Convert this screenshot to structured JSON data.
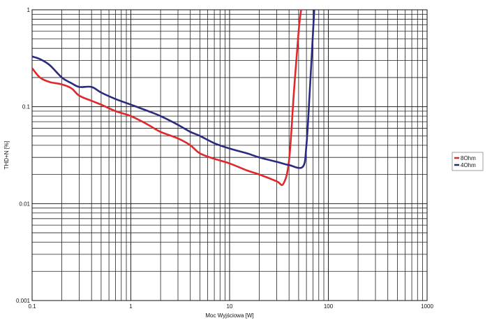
{
  "chart_data": {
    "type": "line",
    "xlabel": "Moc Wyjściowa [W]",
    "ylabel": "THD+N [%]",
    "x_scale": "log",
    "y_scale": "log",
    "xlim": [
      0.1,
      1000
    ],
    "ylim": [
      0.001,
      1
    ],
    "x_ticks": [
      "0.1",
      "1",
      "10",
      "100",
      "1000"
    ],
    "y_ticks": [
      "0.001",
      "0.01",
      "0.1",
      "1"
    ],
    "grid": true,
    "legend_position": "right",
    "series": [
      {
        "name": "8Ohm",
        "color": "#e0282a",
        "x": [
          0.1,
          0.12,
          0.15,
          0.2,
          0.25,
          0.3,
          0.4,
          0.5,
          0.7,
          1,
          1.5,
          2,
          3,
          4,
          5,
          7,
          10,
          15,
          20,
          30,
          35,
          40,
          45,
          50,
          53
        ],
        "y": [
          0.25,
          0.2,
          0.18,
          0.17,
          0.155,
          0.13,
          0.115,
          0.105,
          0.09,
          0.08,
          0.065,
          0.055,
          0.047,
          0.04,
          0.033,
          0.029,
          0.026,
          0.022,
          0.02,
          0.017,
          0.016,
          0.028,
          0.15,
          0.6,
          1
        ]
      },
      {
        "name": "4Ohm",
        "color": "#2a2a80",
        "x": [
          0.1,
          0.12,
          0.15,
          0.2,
          0.25,
          0.3,
          0.4,
          0.5,
          0.7,
          1,
          1.5,
          2,
          3,
          4,
          5,
          7,
          10,
          15,
          20,
          30,
          40,
          55,
          60,
          65,
          70,
          72
        ],
        "y": [
          0.33,
          0.31,
          0.27,
          0.2,
          0.175,
          0.16,
          0.16,
          0.14,
          0.12,
          0.105,
          0.09,
          0.08,
          0.065,
          0.055,
          0.05,
          0.042,
          0.037,
          0.033,
          0.03,
          0.027,
          0.025,
          0.024,
          0.04,
          0.15,
          0.6,
          1
        ]
      }
    ]
  }
}
